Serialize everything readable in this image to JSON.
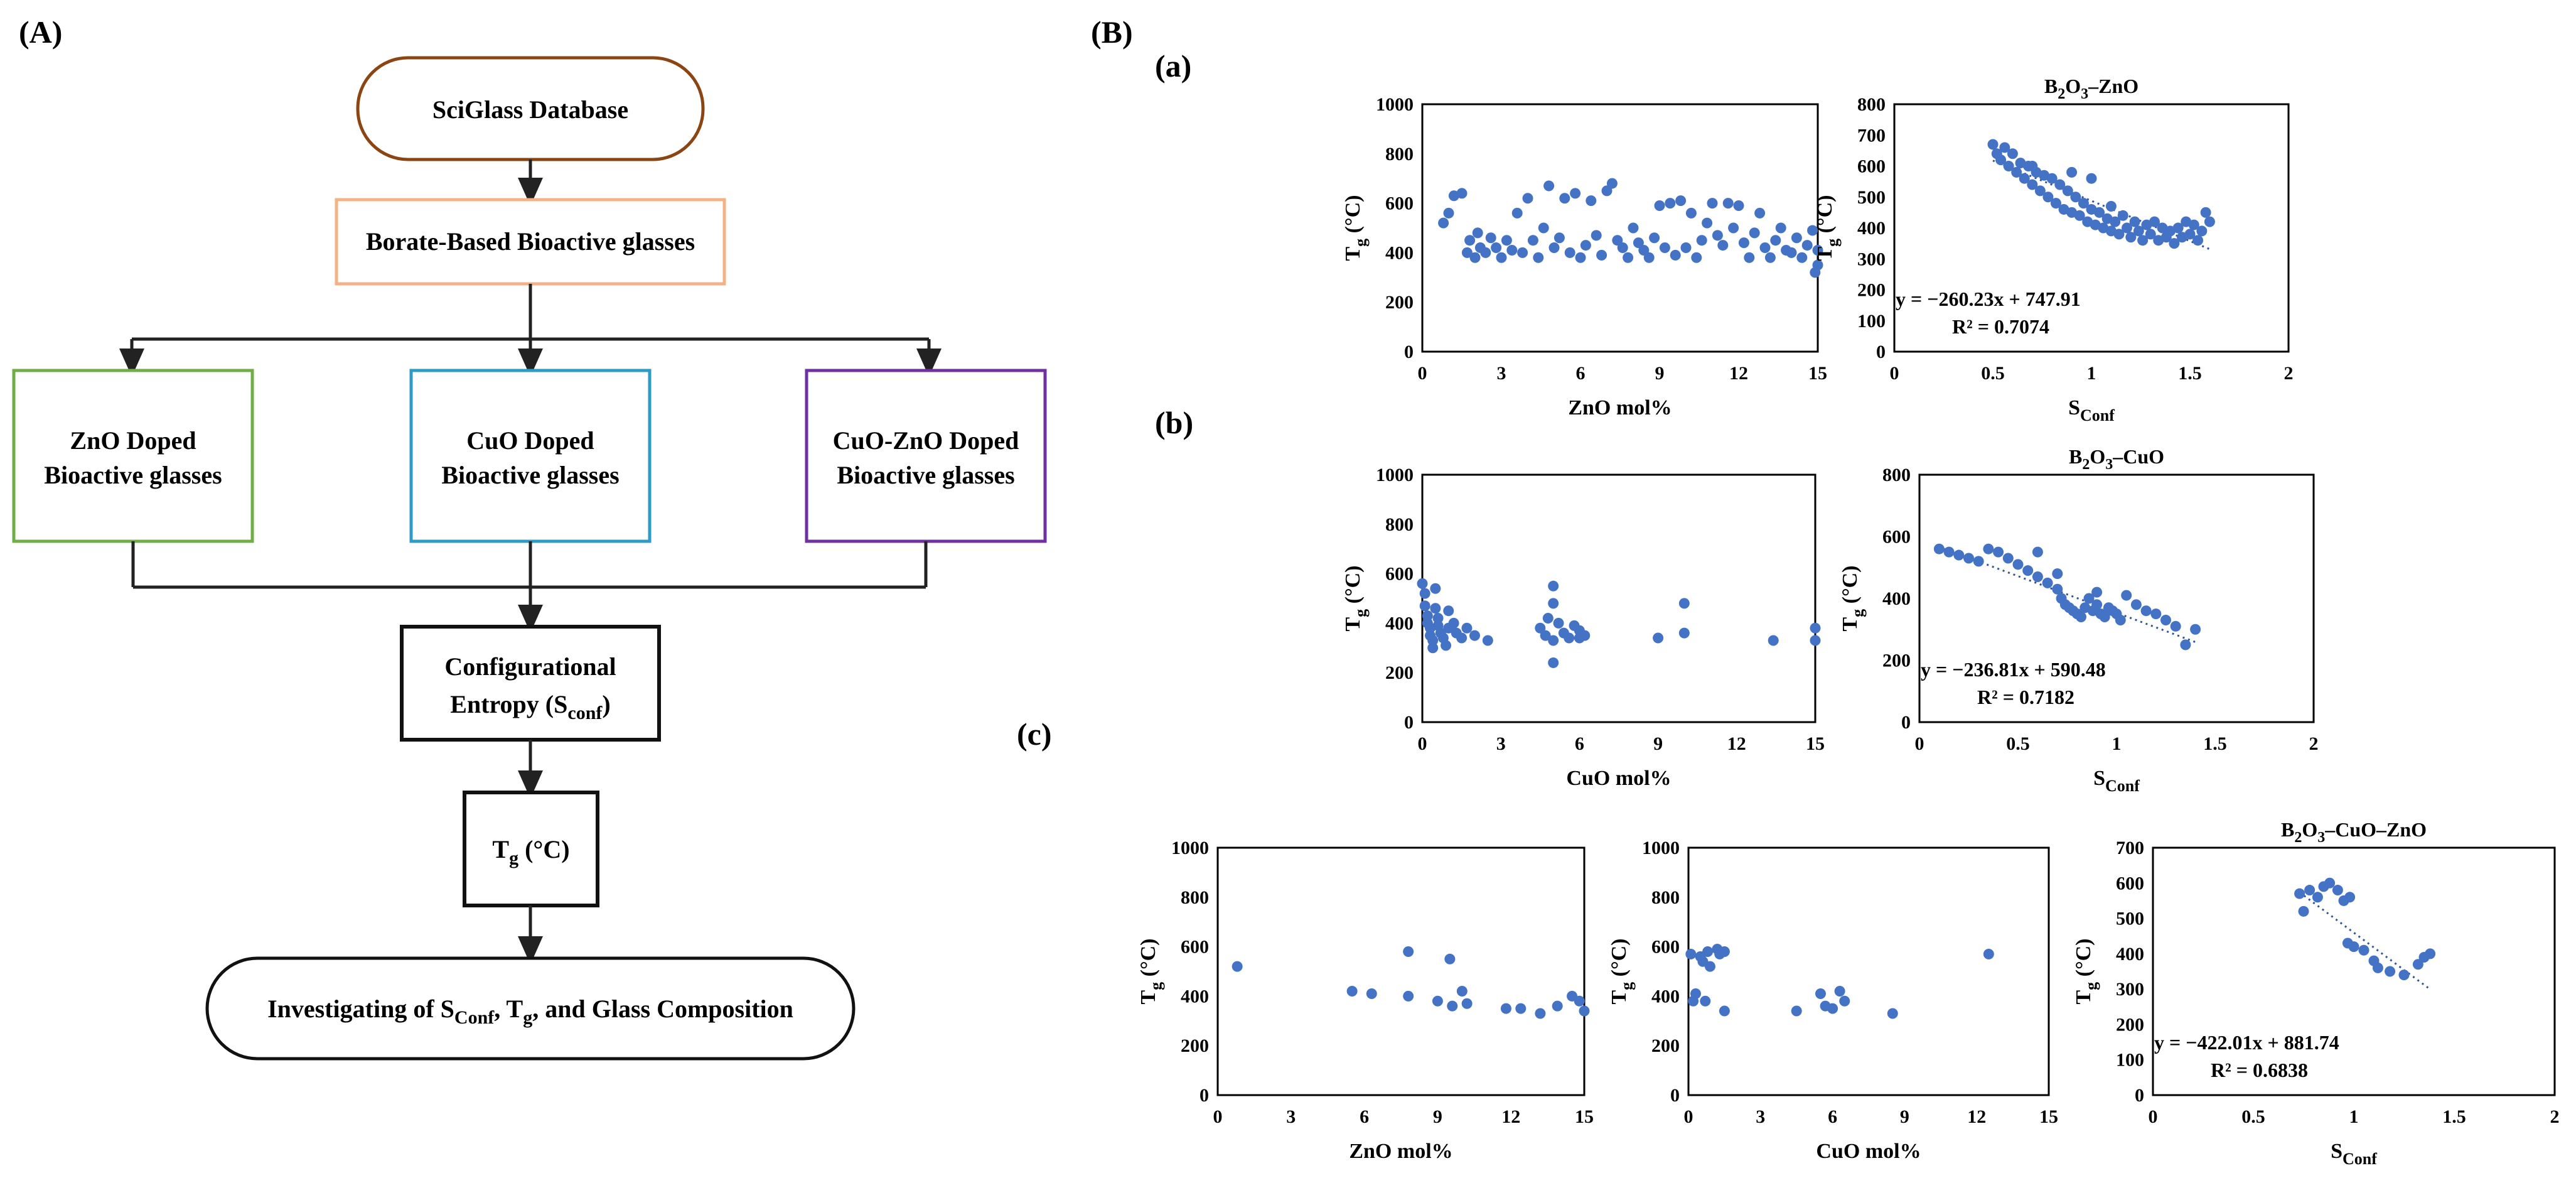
{
  "panel_a": {
    "label": "(A)",
    "database": "SciGlass Database",
    "borate": "Borate-Based Bioactive glasses",
    "zno_line1": "ZnO Doped",
    "zno_line2": "Bioactive glasses",
    "cuo_line1": "CuO Doped",
    "cuo_line2": "Bioactive glasses",
    "cuozno_line1": "CuO-ZnO Doped",
    "cuozno_line2": "Bioactive glasses",
    "entropy_line1": "Configurational",
    "entropy_word": "Entropy  (S",
    "entropy_sub": "conf",
    "entropy_close": ")",
    "tg_main": "T",
    "tg_sub": "g",
    "tg_unit": " (°C)",
    "investigating_pre": "Investigating of S",
    "investigating_sub": "Conf",
    "investigating_mid": ", T",
    "investigating_sub2": "g",
    "investigating_post": ", and Glass Composition"
  },
  "panel_b": {
    "label": "(B)",
    "sub_a": "(a)",
    "sub_b": "(b)",
    "sub_c": "(c)"
  },
  "colors": {
    "database_border": "#8B4513",
    "borate_border": "#F4B183",
    "zno_border": "#70AD47",
    "cuo_border": "#2E9BC6",
    "cuozno_border": "#7030A0",
    "dots": "#4472C4"
  },
  "chart_data": [
    {
      "id": "a-left",
      "type": "scatter",
      "title": "",
      "xlabel": "ZnO mol%",
      "ylabel": "Tg (°C)",
      "xlim": [
        0,
        15
      ],
      "ylim": [
        0,
        1000
      ],
      "xticks": [
        "0",
        "3",
        "6",
        "9",
        "12",
        "15"
      ],
      "yticks": [
        "0",
        "200",
        "400",
        "600",
        "800",
        "1000"
      ],
      "points": [
        [
          0.8,
          520
        ],
        [
          1,
          560
        ],
        [
          1.2,
          630
        ],
        [
          1.5,
          640
        ],
        [
          1.7,
          400
        ],
        [
          1.8,
          450
        ],
        [
          2,
          380
        ],
        [
          2.1,
          480
        ],
        [
          2.2,
          420
        ],
        [
          2.4,
          400
        ],
        [
          2.6,
          460
        ],
        [
          2.8,
          420
        ],
        [
          3,
          380
        ],
        [
          3.2,
          450
        ],
        [
          3.4,
          410
        ],
        [
          3.6,
          560
        ],
        [
          3.8,
          400
        ],
        [
          4,
          620
        ],
        [
          4.2,
          450
        ],
        [
          4.4,
          380
        ],
        [
          4.6,
          500
        ],
        [
          4.8,
          670
        ],
        [
          5,
          420
        ],
        [
          5.2,
          460
        ],
        [
          5.4,
          620
        ],
        [
          5.6,
          400
        ],
        [
          5.8,
          640
        ],
        [
          6,
          380
        ],
        [
          6.2,
          430
        ],
        [
          6.4,
          610
        ],
        [
          6.6,
          470
        ],
        [
          6.8,
          390
        ],
        [
          7,
          650
        ],
        [
          7.2,
          680
        ],
        [
          7.4,
          450
        ],
        [
          7.6,
          420
        ],
        [
          7.8,
          380
        ],
        [
          8,
          500
        ],
        [
          8.2,
          440
        ],
        [
          8.4,
          410
        ],
        [
          8.6,
          380
        ],
        [
          8.8,
          460
        ],
        [
          9,
          590
        ],
        [
          9.2,
          420
        ],
        [
          9.4,
          600
        ],
        [
          9.6,
          390
        ],
        [
          9.8,
          610
        ],
        [
          10,
          420
        ],
        [
          10.2,
          560
        ],
        [
          10.4,
          380
        ],
        [
          10.6,
          450
        ],
        [
          10.8,
          520
        ],
        [
          11,
          600
        ],
        [
          11.2,
          470
        ],
        [
          11.4,
          430
        ],
        [
          11.6,
          600
        ],
        [
          11.8,
          500
        ],
        [
          12,
          590
        ],
        [
          12.2,
          440
        ],
        [
          12.4,
          380
        ],
        [
          12.6,
          480
        ],
        [
          12.8,
          560
        ],
        [
          13,
          420
        ],
        [
          13.2,
          380
        ],
        [
          13.4,
          450
        ],
        [
          13.6,
          500
        ],
        [
          13.8,
          410
        ],
        [
          14,
          400
        ],
        [
          14.2,
          460
        ],
        [
          14.4,
          380
        ],
        [
          14.6,
          430
        ],
        [
          14.8,
          490
        ],
        [
          15,
          410
        ],
        [
          15,
          350
        ],
        [
          14.9,
          320
        ]
      ]
    },
    {
      "id": "a-right",
      "type": "scatter",
      "title": "B2O3–ZnO",
      "title_main": "B",
      "title_sub1": "2",
      "title_mid": "O",
      "title_sub2": "3",
      "title_end": "–ZnO",
      "xlabel": "SConf",
      "ylabel": "Tg (°C)",
      "xlim": [
        0,
        2
      ],
      "ylim": [
        0,
        800
      ],
      "xticks": [
        "0",
        "0.5",
        "1",
        "1.5",
        "2"
      ],
      "yticks": [
        "0",
        "100",
        "200",
        "300",
        "400",
        "500",
        "600",
        "700",
        "800"
      ],
      "trend": {
        "slope": -260.23,
        "intercept": 747.91
      },
      "equation": "y = −260.23x + 747.91",
      "r2": "R² = 0.7074",
      "points": [
        [
          0.5,
          670
        ],
        [
          0.52,
          640
        ],
        [
          0.54,
          620
        ],
        [
          0.56,
          660
        ],
        [
          0.58,
          600
        ],
        [
          0.6,
          640
        ],
        [
          0.62,
          580
        ],
        [
          0.64,
          610
        ],
        [
          0.66,
          560
        ],
        [
          0.68,
          600
        ],
        [
          0.7,
          540
        ],
        [
          0.72,
          580
        ],
        [
          0.74,
          520
        ],
        [
          0.76,
          570
        ],
        [
          0.78,
          500
        ],
        [
          0.8,
          560
        ],
        [
          0.82,
          480
        ],
        [
          0.84,
          540
        ],
        [
          0.86,
          460
        ],
        [
          0.88,
          520
        ],
        [
          0.9,
          450
        ],
        [
          0.92,
          500
        ],
        [
          0.94,
          440
        ],
        [
          0.96,
          480
        ],
        [
          0.98,
          420
        ],
        [
          1,
          460
        ],
        [
          1.02,
          410
        ],
        [
          1.04,
          450
        ],
        [
          1.06,
          400
        ],
        [
          1.08,
          430
        ],
        [
          1.1,
          390
        ],
        [
          1.12,
          420
        ],
        [
          1.14,
          380
        ],
        [
          1.16,
          440
        ],
        [
          1.18,
          400
        ],
        [
          1.2,
          370
        ],
        [
          1.22,
          420
        ],
        [
          1.24,
          390
        ],
        [
          1.26,
          360
        ],
        [
          1.28,
          410
        ],
        [
          1.3,
          380
        ],
        [
          1.32,
          420
        ],
        [
          1.34,
          360
        ],
        [
          1.36,
          400
        ],
        [
          1.38,
          370
        ],
        [
          1.4,
          390
        ],
        [
          1.42,
          350
        ],
        [
          1.44,
          400
        ],
        [
          1.46,
          370
        ],
        [
          1.48,
          420
        ],
        [
          1.5,
          380
        ],
        [
          1.52,
          410
        ],
        [
          1.54,
          360
        ],
        [
          1.56,
          390
        ],
        [
          1.58,
          450
        ],
        [
          1.6,
          420
        ],
        [
          0.9,
          580
        ],
        [
          1.0,
          560
        ],
        [
          1.1,
          470
        ],
        [
          0.7,
          600
        ]
      ]
    },
    {
      "id": "b-left",
      "type": "scatter",
      "title": "",
      "xlabel": "CuO mol%",
      "ylabel": "Tg (°C)",
      "xlim": [
        0,
        15
      ],
      "ylim": [
        0,
        1000
      ],
      "xticks": [
        "0",
        "3",
        "6",
        "9",
        "12",
        "15"
      ],
      "yticks": [
        "0",
        "200",
        "400",
        "600",
        "800",
        "1000"
      ],
      "points": [
        [
          0,
          560
        ],
        [
          0.1,
          520
        ],
        [
          0.1,
          470
        ],
        [
          0.2,
          430
        ],
        [
          0.2,
          400
        ],
        [
          0.3,
          380
        ],
        [
          0.3,
          350
        ],
        [
          0.4,
          330
        ],
        [
          0.4,
          300
        ],
        [
          0.5,
          540
        ],
        [
          0.5,
          460
        ],
        [
          0.6,
          420
        ],
        [
          0.6,
          390
        ],
        [
          0.7,
          360
        ],
        [
          0.8,
          340
        ],
        [
          0.9,
          310
        ],
        [
          1,
          380
        ],
        [
          1,
          450
        ],
        [
          1.2,
          400
        ],
        [
          1.3,
          360
        ],
        [
          1.5,
          340
        ],
        [
          1.7,
          380
        ],
        [
          2,
          350
        ],
        [
          2.5,
          330
        ],
        [
          4.5,
          380
        ],
        [
          4.7,
          350
        ],
        [
          4.8,
          420
        ],
        [
          5,
          550
        ],
        [
          5,
          480
        ],
        [
          5,
          330
        ],
        [
          5,
          240
        ],
        [
          5.2,
          400
        ],
        [
          5.4,
          360
        ],
        [
          5.6,
          340
        ],
        [
          5.8,
          390
        ],
        [
          6,
          370
        ],
        [
          6,
          340
        ],
        [
          6.2,
          350
        ],
        [
          9,
          340
        ],
        [
          10,
          480
        ],
        [
          10,
          360
        ],
        [
          13.4,
          330
        ],
        [
          15,
          380
        ],
        [
          15,
          330
        ]
      ]
    },
    {
      "id": "b-right",
      "type": "scatter",
      "title": "B2O3–CuO",
      "title_main": "B",
      "title_sub1": "2",
      "title_mid": "O",
      "title_sub2": "3",
      "title_end": "–CuO",
      "xlabel": "SConf",
      "ylabel": "Tg (°C)",
      "xlim": [
        0,
        2
      ],
      "ylim": [
        0,
        800
      ],
      "xticks": [
        "0",
        "0.5",
        "1",
        "1.5",
        "2"
      ],
      "yticks": [
        "0",
        "200",
        "400",
        "600",
        "800"
      ],
      "trend": {
        "slope": -236.81,
        "intercept": 590.48
      },
      "equation": "y = −236.81x + 590.48",
      "r2": "R² = 0.7182",
      "points": [
        [
          0.1,
          560
        ],
        [
          0.15,
          550
        ],
        [
          0.2,
          540
        ],
        [
          0.25,
          530
        ],
        [
          0.3,
          520
        ],
        [
          0.35,
          560
        ],
        [
          0.4,
          550
        ],
        [
          0.45,
          530
        ],
        [
          0.5,
          510
        ],
        [
          0.55,
          490
        ],
        [
          0.6,
          470
        ],
        [
          0.65,
          450
        ],
        [
          0.7,
          430
        ],
        [
          0.72,
          400
        ],
        [
          0.74,
          380
        ],
        [
          0.76,
          370
        ],
        [
          0.78,
          360
        ],
        [
          0.8,
          350
        ],
        [
          0.82,
          340
        ],
        [
          0.84,
          370
        ],
        [
          0.86,
          400
        ],
        [
          0.88,
          360
        ],
        [
          0.9,
          380
        ],
        [
          0.92,
          350
        ],
        [
          0.94,
          340
        ],
        [
          0.96,
          370
        ],
        [
          0.98,
          360
        ],
        [
          1.0,
          350
        ],
        [
          1.02,
          330
        ],
        [
          1.05,
          410
        ],
        [
          1.1,
          380
        ],
        [
          1.15,
          360
        ],
        [
          1.2,
          350
        ],
        [
          1.25,
          330
        ],
        [
          1.3,
          310
        ],
        [
          1.35,
          250
        ],
        [
          1.4,
          300
        ],
        [
          0.6,
          550
        ],
        [
          0.7,
          480
        ],
        [
          0.9,
          420
        ]
      ]
    },
    {
      "id": "c-left",
      "type": "scatter",
      "title": "",
      "xlabel": "ZnO mol%",
      "ylabel": "Tg (°C)",
      "xlim": [
        0,
        15
      ],
      "ylim": [
        0,
        1000
      ],
      "xticks": [
        "0",
        "3",
        "6",
        "9",
        "12",
        "15"
      ],
      "yticks": [
        "0",
        "200",
        "400",
        "600",
        "800",
        "1000"
      ],
      "points": [
        [
          0.8,
          520
        ],
        [
          5.5,
          420
        ],
        [
          6.3,
          410
        ],
        [
          7.8,
          580
        ],
        [
          7.8,
          400
        ],
        [
          9,
          380
        ],
        [
          9.5,
          550
        ],
        [
          9.6,
          360
        ],
        [
          10,
          420
        ],
        [
          10.2,
          370
        ],
        [
          11.8,
          350
        ],
        [
          12.4,
          350
        ],
        [
          13.2,
          330
        ],
        [
          13.9,
          360
        ],
        [
          14.5,
          400
        ],
        [
          14.8,
          380
        ],
        [
          15,
          340
        ]
      ]
    },
    {
      "id": "c-mid",
      "type": "scatter",
      "title": "",
      "xlabel": "CuO mol%",
      "ylabel": "Tg (°C)",
      "xlim": [
        0,
        15
      ],
      "ylim": [
        0,
        1000
      ],
      "xticks": [
        "0",
        "3",
        "6",
        "9",
        "12",
        "15"
      ],
      "yticks": [
        "0",
        "200",
        "400",
        "600",
        "800",
        "1000"
      ],
      "points": [
        [
          0.1,
          570
        ],
        [
          0.2,
          380
        ],
        [
          0.3,
          410
        ],
        [
          0.5,
          560
        ],
        [
          0.6,
          540
        ],
        [
          0.7,
          380
        ],
        [
          0.8,
          580
        ],
        [
          0.9,
          520
        ],
        [
          1.2,
          590
        ],
        [
          1.3,
          570
        ],
        [
          1.5,
          580
        ],
        [
          1.5,
          340
        ],
        [
          4.5,
          340
        ],
        [
          5.5,
          410
        ],
        [
          5.7,
          360
        ],
        [
          6,
          350
        ],
        [
          6.3,
          420
        ],
        [
          6.5,
          380
        ],
        [
          8.5,
          330
        ],
        [
          12.5,
          570
        ]
      ]
    },
    {
      "id": "c-right",
      "type": "scatter",
      "title": "B2O3–CuO–ZnO",
      "title_main": "B",
      "title_sub1": "2",
      "title_mid": "O",
      "title_sub2": "3",
      "title_end": "–CuO–ZnO",
      "xlabel": "SConf",
      "ylabel": "Tg (°C)",
      "xlim": [
        0,
        2
      ],
      "ylim": [
        0,
        700
      ],
      "xticks": [
        "0",
        "0.5",
        "1",
        "1.5",
        "2"
      ],
      "yticks": [
        "0",
        "100",
        "200",
        "300",
        "400",
        "500",
        "600",
        "700"
      ],
      "trend": {
        "slope": -422.01,
        "intercept": 881.74
      },
      "equation": "y = −422.01x + 881.74",
      "r2": "R² = 0.6838",
      "points": [
        [
          0.73,
          570
        ],
        [
          0.75,
          520
        ],
        [
          0.78,
          580
        ],
        [
          0.82,
          560
        ],
        [
          0.85,
          590
        ],
        [
          0.88,
          600
        ],
        [
          0.92,
          580
        ],
        [
          0.95,
          550
        ],
        [
          0.98,
          560
        ],
        [
          0.97,
          430
        ],
        [
          1.0,
          420
        ],
        [
          1.05,
          410
        ],
        [
          1.1,
          380
        ],
        [
          1.12,
          360
        ],
        [
          1.18,
          350
        ],
        [
          1.25,
          340
        ],
        [
          1.32,
          370
        ],
        [
          1.35,
          390
        ],
        [
          1.38,
          400
        ]
      ]
    }
  ]
}
